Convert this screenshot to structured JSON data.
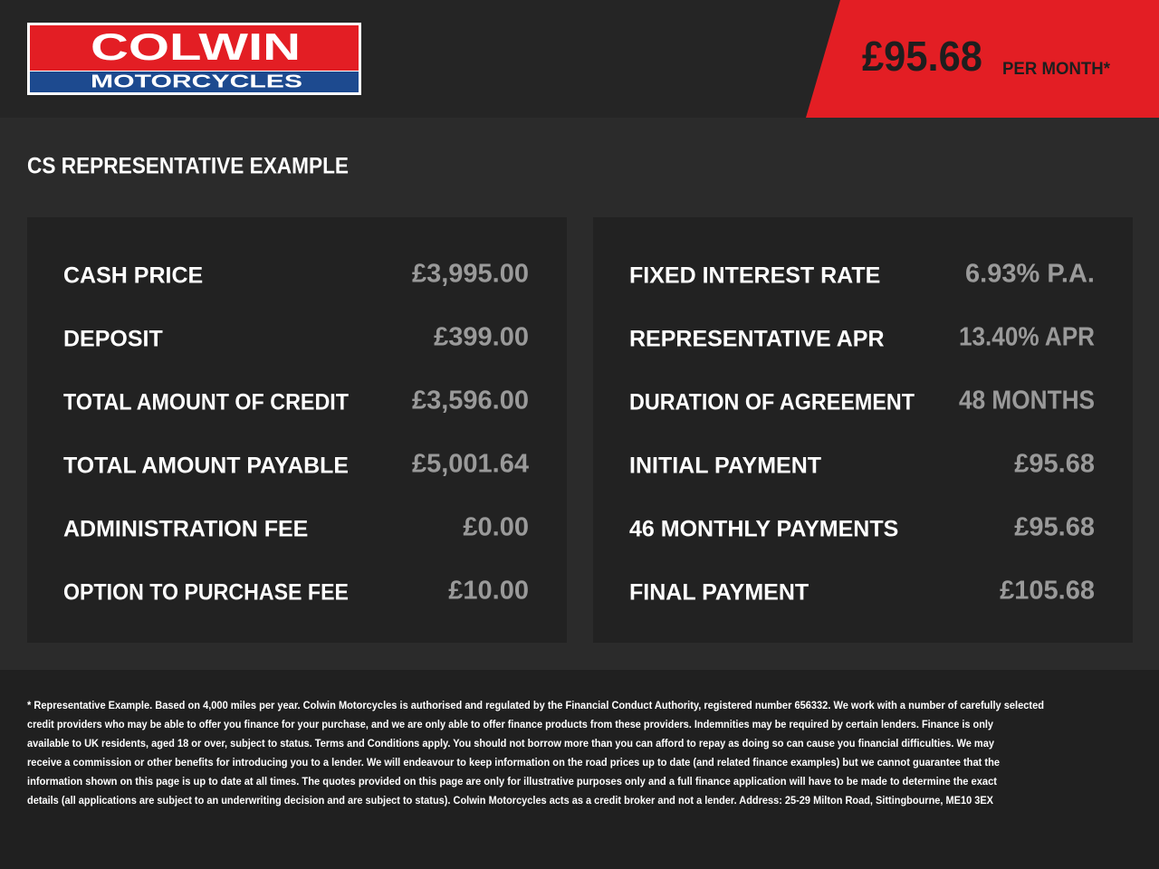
{
  "header": {
    "logo_top": "COLWIN",
    "logo_bottom": "MOTORCYCLES",
    "price": "£95.68",
    "price_note": "PER MONTH*"
  },
  "section_title": "CS REPRESENTATIVE EXAMPLE",
  "left_panel": {
    "rows": [
      [
        "CASH PRICE",
        "£3,995.00"
      ],
      [
        "DEPOSIT",
        "£399.00"
      ],
      [
        "TOTAL AMOUNT OF CREDIT",
        "£3,596.00"
      ],
      [
        "TOTAL AMOUNT PAYABLE",
        "£5,001.64"
      ],
      [
        "ADMINISTRATION FEE",
        "£0.00"
      ],
      [
        "OPTION TO PURCHASE FEE",
        "£10.00"
      ]
    ]
  },
  "right_panel": {
    "rows": [
      [
        "FIXED INTEREST RATE",
        "6.93% P.A."
      ],
      [
        "REPRESENTATIVE APR",
        "13.40% APR"
      ],
      [
        "DURATION OF AGREEMENT",
        "48 MONTHS"
      ],
      [
        "INITIAL PAYMENT",
        "£95.68"
      ],
      [
        "46 MONTHLY PAYMENTS",
        "£95.68"
      ],
      [
        "FINAL PAYMENT",
        "£105.68"
      ]
    ]
  },
  "disclaimer": {
    "lines": [
      "* Representative Example. Based on 4,000 miles per year. Colwin Motorcycles is authorised and regulated by the Financial Conduct Authority, registered number 656332. We work with a number of carefully selected",
      "credit providers who may be able to offer you finance for your purchase, and we are only able to offer finance products from these providers. Indemnities may be required by certain lenders. Finance is only",
      "available to UK residents, aged 18 or over, subject to status. Terms and Conditions apply. You should not borrow more than you can afford to repay as doing so can cause you financial difficulties. We may",
      "receive a commission or other benefits for introducing you to a lender. We will endeavour to keep information on the road prices up to date (and related finance examples) but we cannot guarantee that the",
      "information shown on this page is up to date at all times. The quotes provided on this page are only for illustrative purposes only and a full finance application will have to be made to determine the exact",
      "details (all applications are subject to an underwriting decision and are subject to status). Colwin Motorcycles acts as a credit broker and not a lender. Address:  25-29 Milton Road, Sittingbourne, ME10 3EX"
    ]
  }
}
